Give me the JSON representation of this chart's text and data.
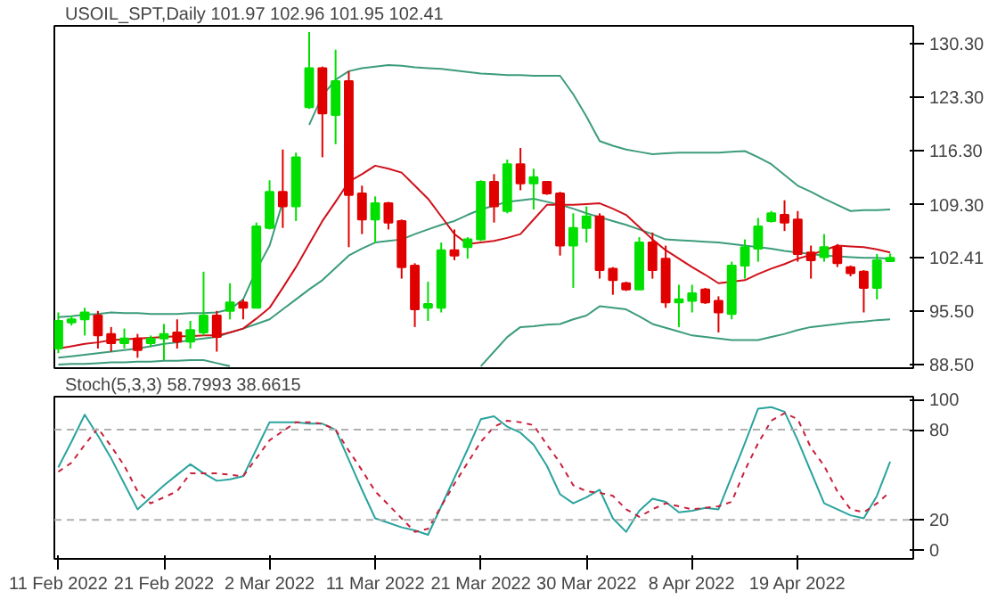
{
  "chart_data": [
    {
      "type": "candlestick",
      "title": "USOIL_SPT,Daily  101.97 102.96 101.95 102.41",
      "tick_labels": "y",
      "ylim": [
        88.05,
        132.6
      ],
      "yticks": [
        {
          "value": 88.5,
          "label": "88.50"
        },
        {
          "value": 95.5,
          "label": "95.50"
        },
        {
          "value": 102.41,
          "label": "102.41"
        },
        {
          "value": 109.3,
          "label": "109.30"
        },
        {
          "value": 116.3,
          "label": "116.30"
        },
        {
          "value": 123.3,
          "label": "123.30"
        },
        {
          "value": 130.3,
          "label": "130.30"
        }
      ],
      "categories": [
        null,
        null,
        null,
        null,
        null,
        null,
        null,
        null,
        null,
        null,
        null,
        null,
        null,
        null,
        null,
        null,
        null,
        null,
        null,
        null,
        null,
        null,
        null,
        null,
        null,
        null,
        null,
        null,
        null,
        null,
        null,
        null,
        null,
        null,
        null,
        null,
        null,
        null,
        null,
        null,
        null,
        null,
        null,
        null,
        null,
        null,
        null,
        null,
        null,
        null,
        null,
        null,
        null,
        null,
        null,
        null,
        null,
        null,
        null,
        null,
        null,
        null,
        null,
        null
      ],
      "ohlc": [
        [
          90.6,
          95.3,
          90.0,
          94.2
        ],
        [
          94.0,
          94.9,
          93.6,
          94.4
        ],
        [
          94.4,
          95.9,
          92.3,
          95.3
        ],
        [
          94.9,
          95.5,
          90.6,
          92.3
        ],
        [
          92.5,
          93.4,
          90.2,
          91.3
        ],
        [
          91.3,
          93.2,
          90.6,
          91.9
        ],
        [
          91.9,
          92.5,
          89.4,
          90.4
        ],
        [
          91.3,
          92.3,
          90.8,
          91.9
        ],
        [
          91.9,
          93.8,
          89.1,
          92.5
        ],
        [
          92.7,
          94.4,
          90.6,
          91.5
        ],
        [
          91.5,
          94.2,
          90.6,
          93.0
        ],
        [
          92.7,
          100.6,
          92.3,
          94.9
        ],
        [
          94.9,
          95.5,
          90.2,
          92.1
        ],
        [
          95.5,
          99.1,
          94.4,
          96.6
        ],
        [
          96.6,
          97.0,
          94.4,
          95.9
        ],
        [
          95.9,
          107.0,
          95.9,
          106.5
        ],
        [
          106.3,
          112.5,
          106.1,
          111.0
        ],
        [
          111.0,
          116.5,
          106.3,
          109.1
        ],
        [
          109.1,
          116.1,
          107.2,
          115.5
        ],
        [
          122.0,
          131.8,
          121.8,
          127.1
        ],
        [
          127.1,
          127.3,
          115.5,
          121.2
        ],
        [
          121.0,
          129.5,
          117.2,
          125.4
        ],
        [
          125.4,
          126.7,
          103.8,
          110.6
        ],
        [
          110.8,
          111.8,
          105.5,
          107.4
        ],
        [
          107.4,
          110.4,
          104.4,
          109.5
        ],
        [
          109.5,
          109.7,
          106.1,
          107.0
        ],
        [
          107.2,
          107.4,
          99.7,
          101.2
        ],
        [
          101.4,
          101.7,
          93.4,
          95.7
        ],
        [
          95.9,
          99.3,
          94.2,
          96.4
        ],
        [
          95.9,
          104.4,
          95.3,
          103.4
        ],
        [
          103.4,
          106.1,
          102.1,
          102.7
        ],
        [
          103.8,
          105.1,
          102.3,
          104.8
        ],
        [
          104.8,
          112.5,
          104.6,
          112.3
        ],
        [
          112.3,
          113.3,
          107.0,
          109.1
        ],
        [
          108.5,
          115.2,
          108.2,
          114.6
        ],
        [
          114.6,
          116.7,
          111.2,
          112.1
        ],
        [
          112.1,
          114.0,
          108.7,
          112.9
        ],
        [
          112.3,
          112.3,
          110.6,
          110.8
        ],
        [
          110.8,
          111.0,
          102.7,
          104.0
        ],
        [
          104.0,
          108.2,
          98.5,
          106.3
        ],
        [
          106.3,
          109.1,
          104.4,
          107.8
        ],
        [
          107.8,
          108.2,
          99.7,
          100.8
        ],
        [
          101.0,
          101.2,
          97.6,
          99.5
        ],
        [
          99.1,
          99.3,
          98.1,
          98.3
        ],
        [
          98.3,
          105.1,
          98.3,
          104.4
        ],
        [
          104.4,
          105.7,
          99.7,
          100.8
        ],
        [
          102.3,
          104.0,
          95.9,
          96.6
        ],
        [
          96.6,
          98.9,
          93.4,
          97.0
        ],
        [
          96.8,
          98.9,
          95.3,
          97.8
        ],
        [
          98.3,
          98.5,
          96.4,
          96.6
        ],
        [
          96.8,
          97.4,
          92.7,
          95.3
        ],
        [
          95.1,
          101.9,
          94.4,
          101.4
        ],
        [
          101.4,
          104.8,
          99.7,
          103.8
        ],
        [
          103.6,
          107.6,
          101.9,
          106.5
        ],
        [
          107.2,
          108.5,
          107.0,
          108.2
        ],
        [
          108.0,
          109.9,
          105.9,
          107.0
        ],
        [
          107.4,
          108.5,
          101.9,
          102.9
        ],
        [
          103.1,
          104.0,
          99.7,
          102.1
        ],
        [
          102.5,
          105.5,
          101.9,
          103.8
        ],
        [
          103.8,
          104.2,
          101.2,
          101.7
        ],
        [
          101.2,
          101.4,
          100.0,
          100.4
        ],
        [
          100.6,
          100.8,
          95.3,
          98.5
        ],
        [
          98.5,
          102.9,
          97.0,
          102.1
        ],
        [
          101.97,
          102.96,
          101.95,
          102.41
        ]
      ],
      "colors": [
        "#00e000",
        "#00e000",
        "#00e000",
        "#e00000",
        "#e00000",
        "#00e000",
        "#e00000",
        "#00e000",
        "#00e000",
        "#e00000",
        "#00e000",
        "#00e000",
        "#e00000",
        "#00e000",
        "#e00000",
        "#00e000",
        "#00e000",
        "#e00000",
        "#00e000",
        "#00e000",
        "#e00000",
        "#00e000",
        "#e00000",
        "#e00000",
        "#00e000",
        "#e00000",
        "#e00000",
        "#e00000",
        "#00e000",
        "#00e000",
        "#e00000",
        "#00e000",
        "#00e000",
        "#e00000",
        "#00e000",
        "#e00000",
        "#00e000",
        "#e00000",
        "#e00000",
        "#00e000",
        "#00e000",
        "#e00000",
        "#e00000",
        "#e00000",
        "#00e000",
        "#e00000",
        "#e00000",
        "#00e000",
        "#00e000",
        "#e00000",
        "#e00000",
        "#00e000",
        "#00e000",
        "#00e000",
        "#00e000",
        "#e00000",
        "#e00000",
        "#e00000",
        "#00e000",
        "#e00000",
        "#e00000",
        "#e00000",
        "#00e000",
        "#00e000"
      ],
      "series": [
        {
          "type": "line",
          "color": "#3c9c7a",
          "values": [
            94.7,
            94.8,
            95.0,
            95.1,
            95.3,
            95.2,
            95.2,
            95.1,
            95.1,
            95.1,
            95.2,
            95.2,
            95.3,
            95.7,
            97.0,
            100.8,
            104.0,
            109.7,
            null,
            119.7,
            123.5,
            125.6,
            126.7,
            127.1,
            127.3,
            127.5,
            127.4,
            127.2,
            127.1,
            127.0,
            126.8,
            126.6,
            126.4,
            126.3,
            126.2,
            126.2,
            126.1,
            126.1,
            126.1,
            123.7,
            120.8,
            117.6,
            117.0,
            116.5,
            116.2,
            115.9,
            116.0,
            116.1,
            116.1,
            116.1,
            116.1,
            116.2,
            116.3,
            115.5,
            114.6,
            113.2,
            111.8,
            111.0,
            110.1,
            109.3,
            108.5,
            108.6,
            108.6,
            108.7
          ]
        },
        {
          "type": "line",
          "color": "#3c9c7a",
          "values": [
            89.4,
            89.6,
            89.8,
            90.0,
            90.2,
            90.4,
            90.6,
            90.9,
            91.2,
            91.4,
            91.7,
            91.9,
            92.1,
            92.7,
            93.2,
            93.8,
            94.4,
            95.7,
            97.0,
            98.3,
            99.5,
            101.1,
            102.7,
            103.6,
            104.4,
            104.6,
            104.8,
            105.5,
            106.1,
            106.7,
            107.2,
            108.0,
            108.7,
            109.2,
            109.7,
            109.9,
            110.1,
            109.7,
            109.3,
            108.8,
            108.2,
            107.7,
            107.2,
            106.7,
            106.1,
            105.5,
            104.8,
            104.7,
            104.6,
            104.5,
            104.4,
            104.2,
            104.0,
            103.8,
            103.6,
            103.3,
            103.1,
            102.9,
            102.7,
            102.6,
            102.5,
            102.4,
            102.4,
            102.3
          ]
        },
        {
          "type": "line",
          "color": "#3c9c7a",
          "values": [
            88.5,
            88.6,
            88.6,
            88.7,
            88.8,
            88.8,
            88.9,
            88.9,
            89.0,
            89.0,
            89.1,
            89.1,
            88.7,
            88.3,
            null,
            null,
            null,
            null,
            null,
            null,
            null,
            null,
            null,
            null,
            null,
            null,
            null,
            null,
            null,
            null,
            null,
            null,
            88.3,
            90.2,
            92.1,
            93.4,
            93.5,
            93.7,
            93.8,
            94.4,
            94.9,
            96.1,
            95.9,
            95.7,
            94.8,
            93.8,
            93.3,
            92.8,
            92.3,
            92.1,
            91.9,
            91.7,
            91.7,
            91.7,
            92.1,
            92.5,
            93.0,
            93.4,
            93.6,
            93.8,
            94.0,
            94.1,
            94.3,
            94.4
          ]
        },
        {
          "type": "line",
          "color": "#d0101a",
          "values": [
            90.6,
            90.9,
            91.2,
            91.4,
            91.7,
            91.8,
            91.9,
            92.0,
            92.1,
            92.2,
            92.2,
            92.3,
            92.3,
            92.7,
            93.2,
            94.5,
            95.9,
            98.5,
            101.2,
            104.2,
            107.2,
            109.7,
            112.3,
            113.3,
            114.4,
            114.0,
            113.5,
            111.8,
            110.1,
            107.8,
            105.5,
            104.2,
            104.4,
            104.6,
            105.0,
            105.5,
            107.4,
            109.3,
            109.3,
            109.3,
            109.4,
            109.5,
            108.8,
            108.0,
            106.4,
            104.8,
            103.4,
            102.3,
            101.2,
            100.2,
            99.1,
            99.3,
            99.5,
            100.3,
            101.0,
            101.6,
            102.3,
            102.8,
            103.4,
            104.0,
            103.9,
            103.8,
            103.5,
            103.1
          ]
        }
      ]
    },
    {
      "type": "line",
      "title": "Stoch(5,3,3) 58.7993 38.6615",
      "ylim": [
        -6,
        102
      ],
      "yticks": [
        0,
        20,
        80,
        100
      ],
      "categories": [
        "11 Feb 2022",
        null,
        null,
        null,
        null,
        null,
        null,
        null,
        "21 Feb 2022",
        null,
        null,
        null,
        null,
        null,
        null,
        null,
        "2 Mar 2022",
        null,
        null,
        null,
        null,
        null,
        null,
        null,
        "11 Mar 2022",
        null,
        null,
        null,
        null,
        null,
        null,
        null,
        "21 Mar 2022",
        null,
        null,
        null,
        null,
        null,
        null,
        null,
        "30 Mar 2022",
        null,
        null,
        null,
        null,
        null,
        null,
        null,
        "8 Apr 2022",
        null,
        null,
        null,
        null,
        null,
        null,
        null,
        "19 Apr 2022",
        null,
        null,
        null,
        null,
        null,
        null,
        null
      ],
      "ref_lines": [
        {
          "axis": "y",
          "value": 80,
          "color": "#b0b0b0",
          "line_style": "dashed"
        },
        {
          "axis": "y",
          "value": 20,
          "color": "#b0b0b0",
          "line_style": "dashed"
        }
      ],
      "series": [
        {
          "color": "#2aa39e",
          "line_style": "solid",
          "values": [
            55,
            72,
            90,
            76,
            61,
            44,
            27,
            35,
            43,
            50,
            57,
            51,
            46,
            47,
            49,
            67,
            85,
            85,
            85,
            84,
            84,
            80,
            60,
            40,
            21,
            18,
            15,
            13,
            10,
            29,
            48,
            67,
            87,
            89,
            82,
            78,
            70,
            56,
            37,
            31,
            35,
            40,
            21,
            12,
            26,
            34,
            32,
            25,
            26,
            28,
            27,
            49,
            71,
            94,
            95,
            92,
            73,
            52,
            31,
            27,
            23,
            21,
            36,
            58.7993
          ]
        },
        {
          "color": "#c8203c",
          "line_style": "dotted",
          "values": [
            52,
            58,
            70,
            81,
            69,
            56,
            39,
            31,
            35,
            39,
            51,
            51,
            51,
            50,
            49,
            61,
            73,
            79,
            85,
            85,
            84,
            80,
            66,
            53,
            39,
            30,
            21,
            12,
            14,
            29,
            44,
            58,
            72,
            82,
            86,
            85,
            83,
            70,
            58,
            43,
            39,
            38,
            36,
            27,
            22,
            27,
            31,
            29,
            27,
            28,
            29,
            32,
            53,
            71,
            86,
            91,
            87,
            68,
            56,
            39,
            27,
            25,
            31,
            38.6615
          ]
        }
      ]
    }
  ]
}
